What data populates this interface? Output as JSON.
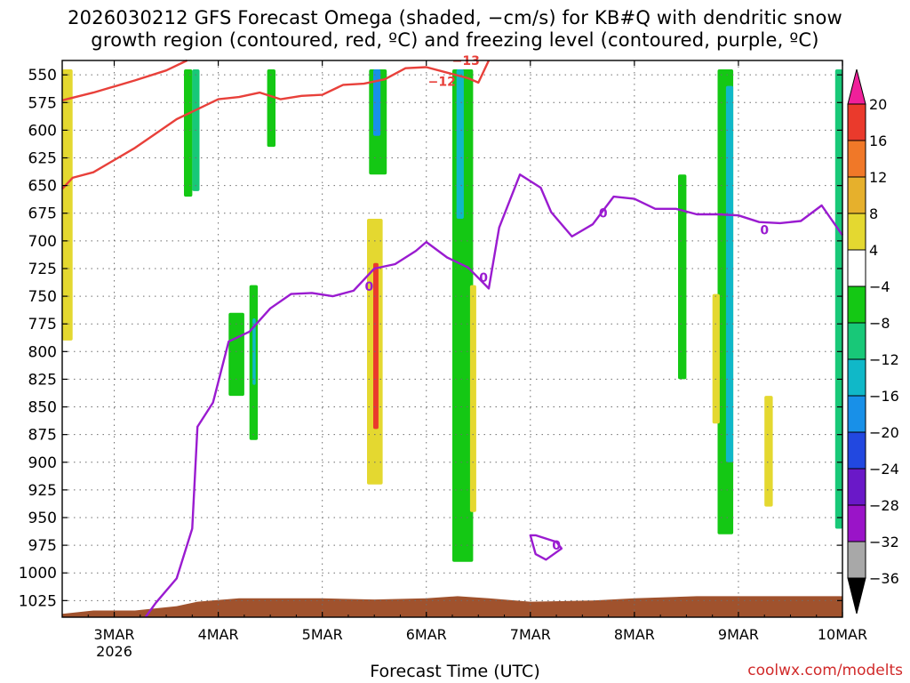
{
  "title_line1": "2026030212 GFS Forecast Omega (shaded, −cm/s) for KB#Q with dendritic snow",
  "title_line2": "growth region (contoured, red, ºC) and freezing level (contoured, purple, ºC)",
  "xlabel": "Forecast Time (UTC)",
  "credit": "coolwx.com/modelts",
  "colors": {
    "dgz_contour": "#e8403a",
    "freezing_contour": "#9a1bd0",
    "ground": "#a0522d",
    "grid": "#6e6e6e"
  },
  "chart_data": {
    "type": "heatmap",
    "x_axis": {
      "range": [
        "2026-03-02T12",
        "2026-03-10T00"
      ],
      "tick_labels": [
        "3MAR",
        "4MAR",
        "5MAR",
        "6MAR",
        "7MAR",
        "8MAR",
        "9MAR",
        "10MAR"
      ],
      "tick_days": [
        3,
        4,
        5,
        6,
        7,
        8,
        9,
        10
      ],
      "sub_label": "2026"
    },
    "y_axis": {
      "unit": "hPa",
      "inverted": true,
      "range": [
        1040,
        537
      ],
      "tick_labels": [
        "550",
        "575",
        "600",
        "625",
        "650",
        "675",
        "700",
        "725",
        "750",
        "775",
        "800",
        "825",
        "850",
        "875",
        "900",
        "925",
        "950",
        "975",
        "1000",
        "1025"
      ]
    },
    "grid": true,
    "colorbar": {
      "ticks": [
        "20",
        "16",
        "12",
        "8",
        "4",
        "−4",
        "−8",
        "−12",
        "−16",
        "−20",
        "−24",
        "−28",
        "−32",
        "−36"
      ],
      "colors": [
        "#f0209a",
        "#ea3a2c",
        "#f07828",
        "#e6b02c",
        "#e4d830",
        "#ffffff",
        "#14c814",
        "#18c878",
        "#10b8c8",
        "#1890e8",
        "#2248e0",
        "#6a18c8",
        "#9a14c8",
        "#a8a8a8",
        "#000000"
      ]
    },
    "contour_labels": {
      "dgz": [
        "−12",
        "−13"
      ],
      "freezing": [
        "0",
        "0",
        "0",
        "0",
        "0"
      ]
    },
    "dgz_lower_boundary": [
      [
        2.5,
        653
      ],
      [
        2.6,
        643
      ],
      [
        2.8,
        638
      ],
      [
        3.0,
        627
      ],
      [
        3.2,
        616
      ],
      [
        3.4,
        603
      ],
      [
        3.6,
        590
      ],
      [
        3.8,
        581
      ],
      [
        4.0,
        572
      ],
      [
        4.2,
        570
      ],
      [
        4.4,
        566
      ],
      [
        4.6,
        572
      ],
      [
        4.8,
        569
      ],
      [
        5.0,
        568
      ],
      [
        5.2,
        559
      ],
      [
        5.4,
        558
      ],
      [
        5.6,
        554
      ],
      [
        5.8,
        544
      ],
      [
        6.0,
        543
      ],
      [
        6.2,
        548
      ],
      [
        6.4,
        553
      ],
      [
        6.5,
        557
      ],
      [
        6.6,
        537
      ]
    ],
    "dgz_upper_boundary": [
      [
        2.5,
        573
      ],
      [
        2.8,
        566
      ],
      [
        3.2,
        555
      ],
      [
        3.5,
        546
      ],
      [
        3.7,
        537
      ]
    ],
    "freezing_level": [
      [
        3.3,
        1040
      ],
      [
        3.4,
        1027
      ],
      [
        3.6,
        1005
      ],
      [
        3.75,
        960
      ],
      [
        3.8,
        868
      ],
      [
        3.95,
        846
      ],
      [
        4.1,
        791
      ],
      [
        4.3,
        782
      ],
      [
        4.5,
        761
      ],
      [
        4.7,
        748
      ],
      [
        4.9,
        747
      ],
      [
        5.1,
        750
      ],
      [
        5.3,
        745
      ],
      [
        5.5,
        725
      ],
      [
        5.7,
        721
      ],
      [
        5.9,
        709
      ],
      [
        6.0,
        701
      ],
      [
        6.2,
        715
      ],
      [
        6.4,
        724
      ],
      [
        6.6,
        743
      ],
      [
        6.7,
        688
      ],
      [
        6.9,
        640
      ],
      [
        7.1,
        652
      ],
      [
        7.2,
        674
      ],
      [
        7.4,
        696
      ],
      [
        7.6,
        685
      ],
      [
        7.8,
        660
      ],
      [
        8.0,
        662
      ],
      [
        8.2,
        671
      ],
      [
        8.4,
        671
      ],
      [
        8.6,
        676
      ],
      [
        8.8,
        676
      ],
      [
        9.0,
        677
      ],
      [
        9.2,
        683
      ],
      [
        9.4,
        684
      ],
      [
        9.6,
        682
      ],
      [
        9.8,
        668
      ],
      [
        10.0,
        695
      ]
    ],
    "freezing_loop": [
      [
        7.0,
        966
      ],
      [
        7.05,
        983
      ],
      [
        7.15,
        988
      ],
      [
        7.3,
        978
      ],
      [
        7.25,
        972
      ],
      [
        7.05,
        966
      ]
    ],
    "ground_surface": [
      [
        2.5,
        1037
      ],
      [
        2.8,
        1034
      ],
      [
        3.2,
        1034
      ],
      [
        3.6,
        1030
      ],
      [
        3.8,
        1026
      ],
      [
        4.2,
        1023
      ],
      [
        5.0,
        1023
      ],
      [
        5.5,
        1024
      ],
      [
        6.0,
        1023
      ],
      [
        6.3,
        1021
      ],
      [
        6.6,
        1023
      ],
      [
        7.0,
        1026
      ],
      [
        7.6,
        1025
      ],
      [
        8.0,
        1023
      ],
      [
        8.6,
        1021
      ],
      [
        9.0,
        1021
      ],
      [
        9.5,
        1021
      ],
      [
        10.0,
        1021
      ]
    ],
    "omega_regions": [
      {
        "x0": 2.5,
        "x1": 2.6,
        "p_top": 545,
        "p_bot": 790,
        "value": 5
      },
      {
        "x0": 3.67,
        "x1": 3.75,
        "p_top": 545,
        "p_bot": 660,
        "value": -6
      },
      {
        "x0": 3.75,
        "x1": 3.82,
        "p_top": 545,
        "p_bot": 655,
        "value": -10
      },
      {
        "x0": 4.1,
        "x1": 4.25,
        "p_top": 765,
        "p_bot": 840,
        "value": -7
      },
      {
        "x0": 4.3,
        "x1": 4.38,
        "p_top": 740,
        "p_bot": 880,
        "value": -7
      },
      {
        "x0": 4.33,
        "x1": 4.36,
        "p_top": 770,
        "p_bot": 830,
        "value": -14
      },
      {
        "x0": 4.47,
        "x1": 4.55,
        "p_top": 545,
        "p_bot": 615,
        "value": -6
      },
      {
        "x0": 5.45,
        "x1": 5.62,
        "p_top": 545,
        "p_bot": 640,
        "value": -7
      },
      {
        "x0": 5.49,
        "x1": 5.56,
        "p_top": 545,
        "p_bot": 605,
        "value": -16
      },
      {
        "x0": 5.43,
        "x1": 5.58,
        "p_top": 680,
        "p_bot": 920,
        "value": 5
      },
      {
        "x0": 5.49,
        "x1": 5.54,
        "p_top": 720,
        "p_bot": 870,
        "value": 18
      },
      {
        "x0": 6.25,
        "x1": 6.45,
        "p_top": 545,
        "p_bot": 990,
        "value": -6
      },
      {
        "x0": 6.29,
        "x1": 6.36,
        "p_top": 545,
        "p_bot": 680,
        "value": -14
      },
      {
        "x0": 6.42,
        "x1": 6.48,
        "p_top": 740,
        "p_bot": 945,
        "value": 5
      },
      {
        "x0": 8.8,
        "x1": 8.95,
        "p_top": 545,
        "p_bot": 965,
        "value": -7
      },
      {
        "x0": 8.88,
        "x1": 8.95,
        "p_top": 560,
        "p_bot": 900,
        "value": -12
      },
      {
        "x0": 8.42,
        "x1": 8.5,
        "p_top": 640,
        "p_bot": 825,
        "value": -6
      },
      {
        "x0": 8.75,
        "x1": 8.82,
        "p_top": 748,
        "p_bot": 865,
        "value": 6
      },
      {
        "x0": 9.25,
        "x1": 9.33,
        "p_top": 840,
        "p_bot": 940,
        "value": 5
      },
      {
        "x0": 9.93,
        "x1": 10.0,
        "p_top": 545,
        "p_bot": 960,
        "value": -8
      }
    ]
  }
}
